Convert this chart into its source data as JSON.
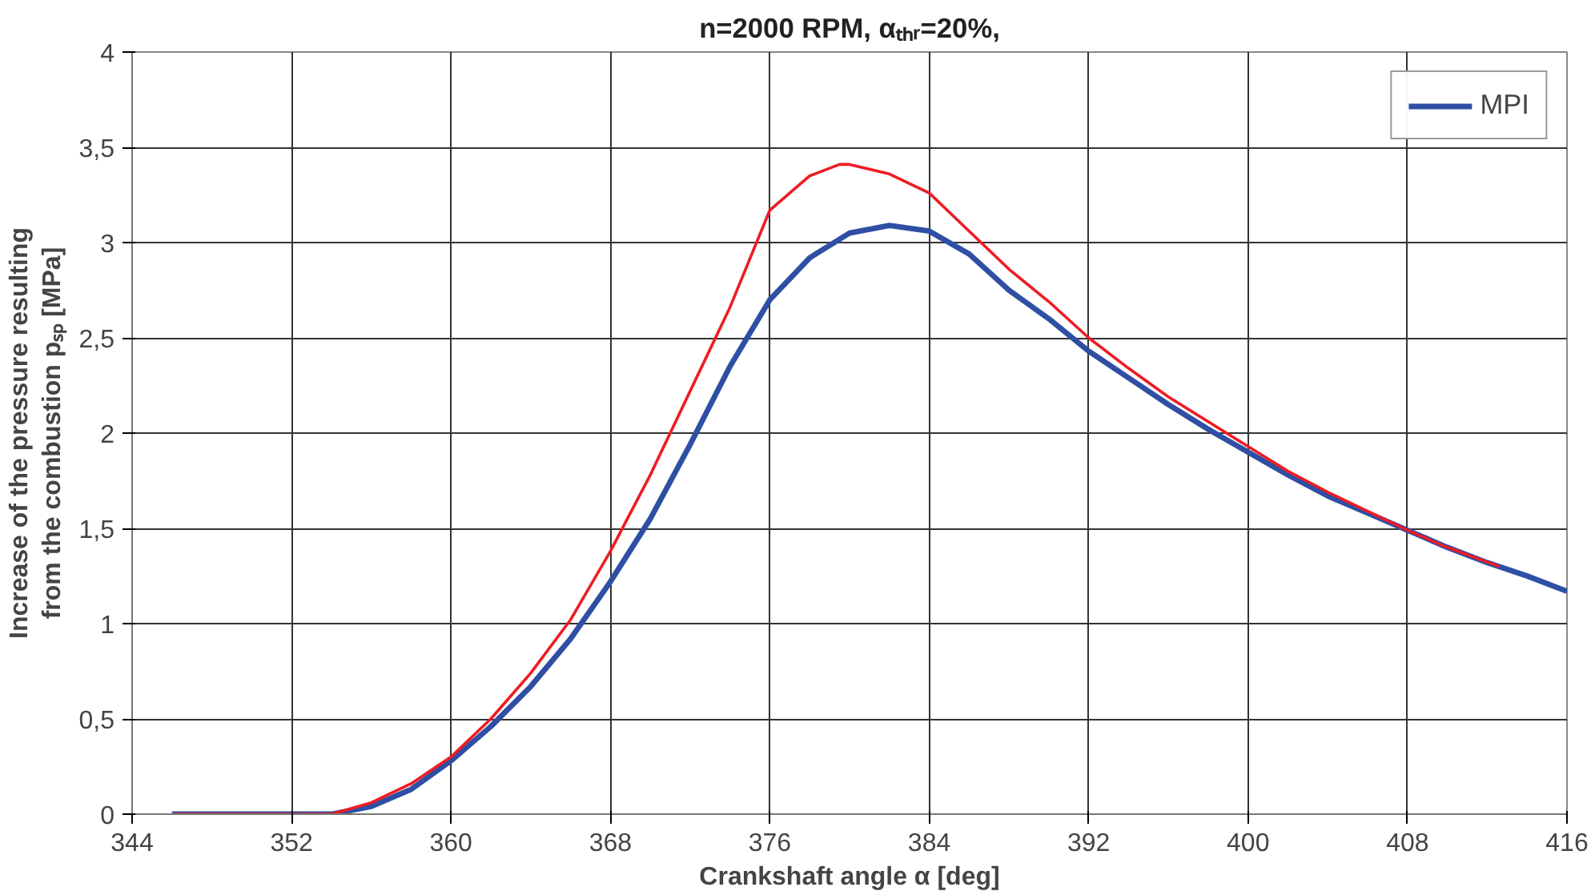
{
  "chart_data": {
    "type": "line",
    "title": "n=2000 RPM, αₜₕᵣ=20%,",
    "xlabel": "Crankshaft angle α [deg]",
    "ylabel": "Increase of the pressure resulting\nfrom the combustion pₛₚ [MPa]",
    "xlim": [
      344,
      416
    ],
    "xticks": [
      344,
      352,
      360,
      368,
      376,
      384,
      392,
      400,
      408,
      416
    ],
    "ylim": [
      0,
      4
    ],
    "yticks": [
      0,
      {
        "value": 0.5,
        "label": "0,5"
      },
      1,
      {
        "value": 1.5,
        "label": "1,5"
      },
      2,
      {
        "value": 2.5,
        "label": "2,5"
      },
      3,
      {
        "value": 3.5,
        "label": "3,5"
      },
      4
    ],
    "grid": true,
    "legend": "top right",
    "line_style": "solid",
    "series": [
      {
        "name": "MPI",
        "color": "#2e4fa3",
        "x": [
          346,
          350,
          354,
          356,
          358,
          360,
          362,
          364,
          366,
          368,
          370,
          372,
          374,
          376,
          378,
          380,
          382,
          384,
          386,
          388,
          390,
          392,
          394,
          396,
          398,
          400,
          402,
          404,
          406,
          408,
          410,
          412,
          414,
          416
        ],
        "values": [
          0,
          0,
          0,
          0.04,
          0.13,
          0.28,
          0.46,
          0.67,
          0.92,
          1.22,
          1.55,
          1.94,
          2.35,
          2.7,
          2.92,
          3.05,
          3.09,
          3.06,
          2.94,
          2.75,
          2.6,
          2.43,
          2.29,
          2.15,
          2.02,
          1.9,
          1.78,
          1.67,
          1.58,
          1.49,
          1.4,
          1.32,
          1.25,
          1.17
        ]
      },
      {
        "color": "#ee1c24",
        "x": [
          346,
          350,
          354,
          356,
          358,
          360,
          362,
          364,
          366,
          368,
          370,
          372,
          374,
          376,
          378,
          379.5,
          380,
          382,
          384,
          386,
          388,
          390,
          392,
          394,
          396,
          398,
          400,
          402,
          404,
          406,
          408,
          410,
          412.6
        ],
        "values": [
          0,
          0,
          0,
          0.06,
          0.16,
          0.3,
          0.5,
          0.74,
          1.02,
          1.38,
          1.78,
          2.22,
          2.66,
          3.17,
          3.35,
          3.41,
          3.41,
          3.36,
          3.26,
          3.06,
          2.86,
          2.69,
          2.5,
          2.34,
          2.19,
          2.06,
          1.93,
          1.8,
          1.69,
          1.59,
          1.49,
          1.4,
          1.3
        ]
      }
    ]
  }
}
